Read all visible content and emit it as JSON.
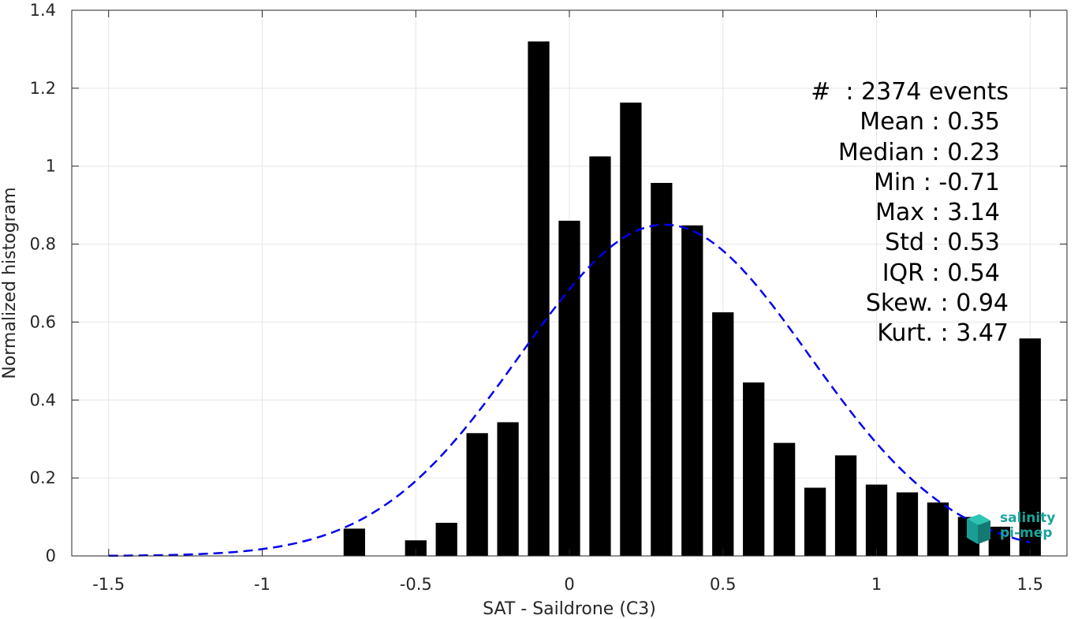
{
  "chart_data": {
    "type": "bar",
    "xlabel": "SAT - Saildrone (C3)",
    "ylabel": "Normalized histogram",
    "xlim": [
      -1.62,
      1.62
    ],
    "ylim": [
      0,
      1.4
    ],
    "grid": true,
    "xticks": [
      "-1.5",
      "-1",
      "-0.5",
      "0",
      "0.5",
      "1",
      "1.5"
    ],
    "xtick_values": [
      -1.5,
      -1,
      -0.5,
      0,
      0.5,
      1,
      1.5
    ],
    "yticks": [
      "0",
      "0.2",
      "0.4",
      "0.6",
      "0.8",
      "1",
      "1.2",
      "1.4"
    ],
    "ytick_values": [
      0,
      0.2,
      0.4,
      0.6,
      0.8,
      1.0,
      1.2,
      1.4
    ],
    "bar_width": 0.07,
    "bars": [
      {
        "x": -0.7,
        "y": 0.07
      },
      {
        "x": -0.5,
        "y": 0.04
      },
      {
        "x": -0.4,
        "y": 0.085
      },
      {
        "x": -0.3,
        "y": 0.315
      },
      {
        "x": -0.2,
        "y": 0.343
      },
      {
        "x": -0.1,
        "y": 1.32
      },
      {
        "x": 0.0,
        "y": 0.86
      },
      {
        "x": 0.1,
        "y": 1.025
      },
      {
        "x": 0.2,
        "y": 1.163
      },
      {
        "x": 0.3,
        "y": 0.957
      },
      {
        "x": 0.4,
        "y": 0.848
      },
      {
        "x": 0.5,
        "y": 0.625
      },
      {
        "x": 0.6,
        "y": 0.445
      },
      {
        "x": 0.7,
        "y": 0.29
      },
      {
        "x": 0.8,
        "y": 0.175
      },
      {
        "x": 0.9,
        "y": 0.258
      },
      {
        "x": 1.0,
        "y": 0.183
      },
      {
        "x": 1.1,
        "y": 0.163
      },
      {
        "x": 1.2,
        "y": 0.137
      },
      {
        "x": 1.3,
        "y": 0.1
      },
      {
        "x": 1.4,
        "y": 0.075
      },
      {
        "x": 1.5,
        "y": 0.558
      }
    ],
    "fit_curve": {
      "type": "normal",
      "mean": 0.31,
      "std": 0.47,
      "x_range": [
        -1.5,
        1.5
      ],
      "color": "#0000ee",
      "style": "dashed"
    },
    "bar_color": "#000000",
    "stats": [
      {
        "label": "#  : 2374 events"
      },
      {
        "label": "Mean : 0.35"
      },
      {
        "label": "Median : 0.23"
      },
      {
        "label": "Min : -0.71"
      },
      {
        "label": "Max : 3.14"
      },
      {
        "label": "Std : 0.53"
      },
      {
        "label": "IQR : 0.54"
      },
      {
        "label": "Skew. : 0.94"
      },
      {
        "label": "Kurt. : 3.47"
      }
    ]
  },
  "logo": {
    "line1": "salinity",
    "line2": "pi-mep"
  }
}
